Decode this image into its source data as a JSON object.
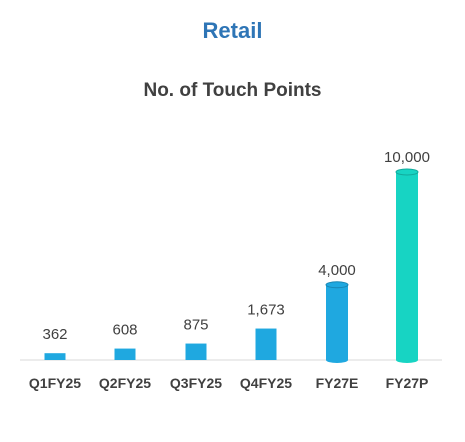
{
  "chart_data": {
    "type": "bar",
    "title": "Retail",
    "subtitle": "No. of Touch Points",
    "xlabel": "",
    "ylabel": "",
    "categories": [
      "Q1FY25",
      "Q2FY25",
      "Q3FY25",
      "Q4FY25",
      "FY27E",
      "FY27P"
    ],
    "values": [
      362,
      608,
      875,
      1673,
      4000,
      10000
    ],
    "value_labels": [
      "362",
      "608",
      "875",
      "1,673",
      "4,000",
      "10,000"
    ],
    "bar_colors": [
      "#1fa8e0",
      "#1fa8e0",
      "#1fa8e0",
      "#1fa8e0",
      "#1fa8e0",
      "#17d4c3"
    ],
    "ylim": [
      0,
      10000
    ],
    "grid": false,
    "legend": "none"
  }
}
